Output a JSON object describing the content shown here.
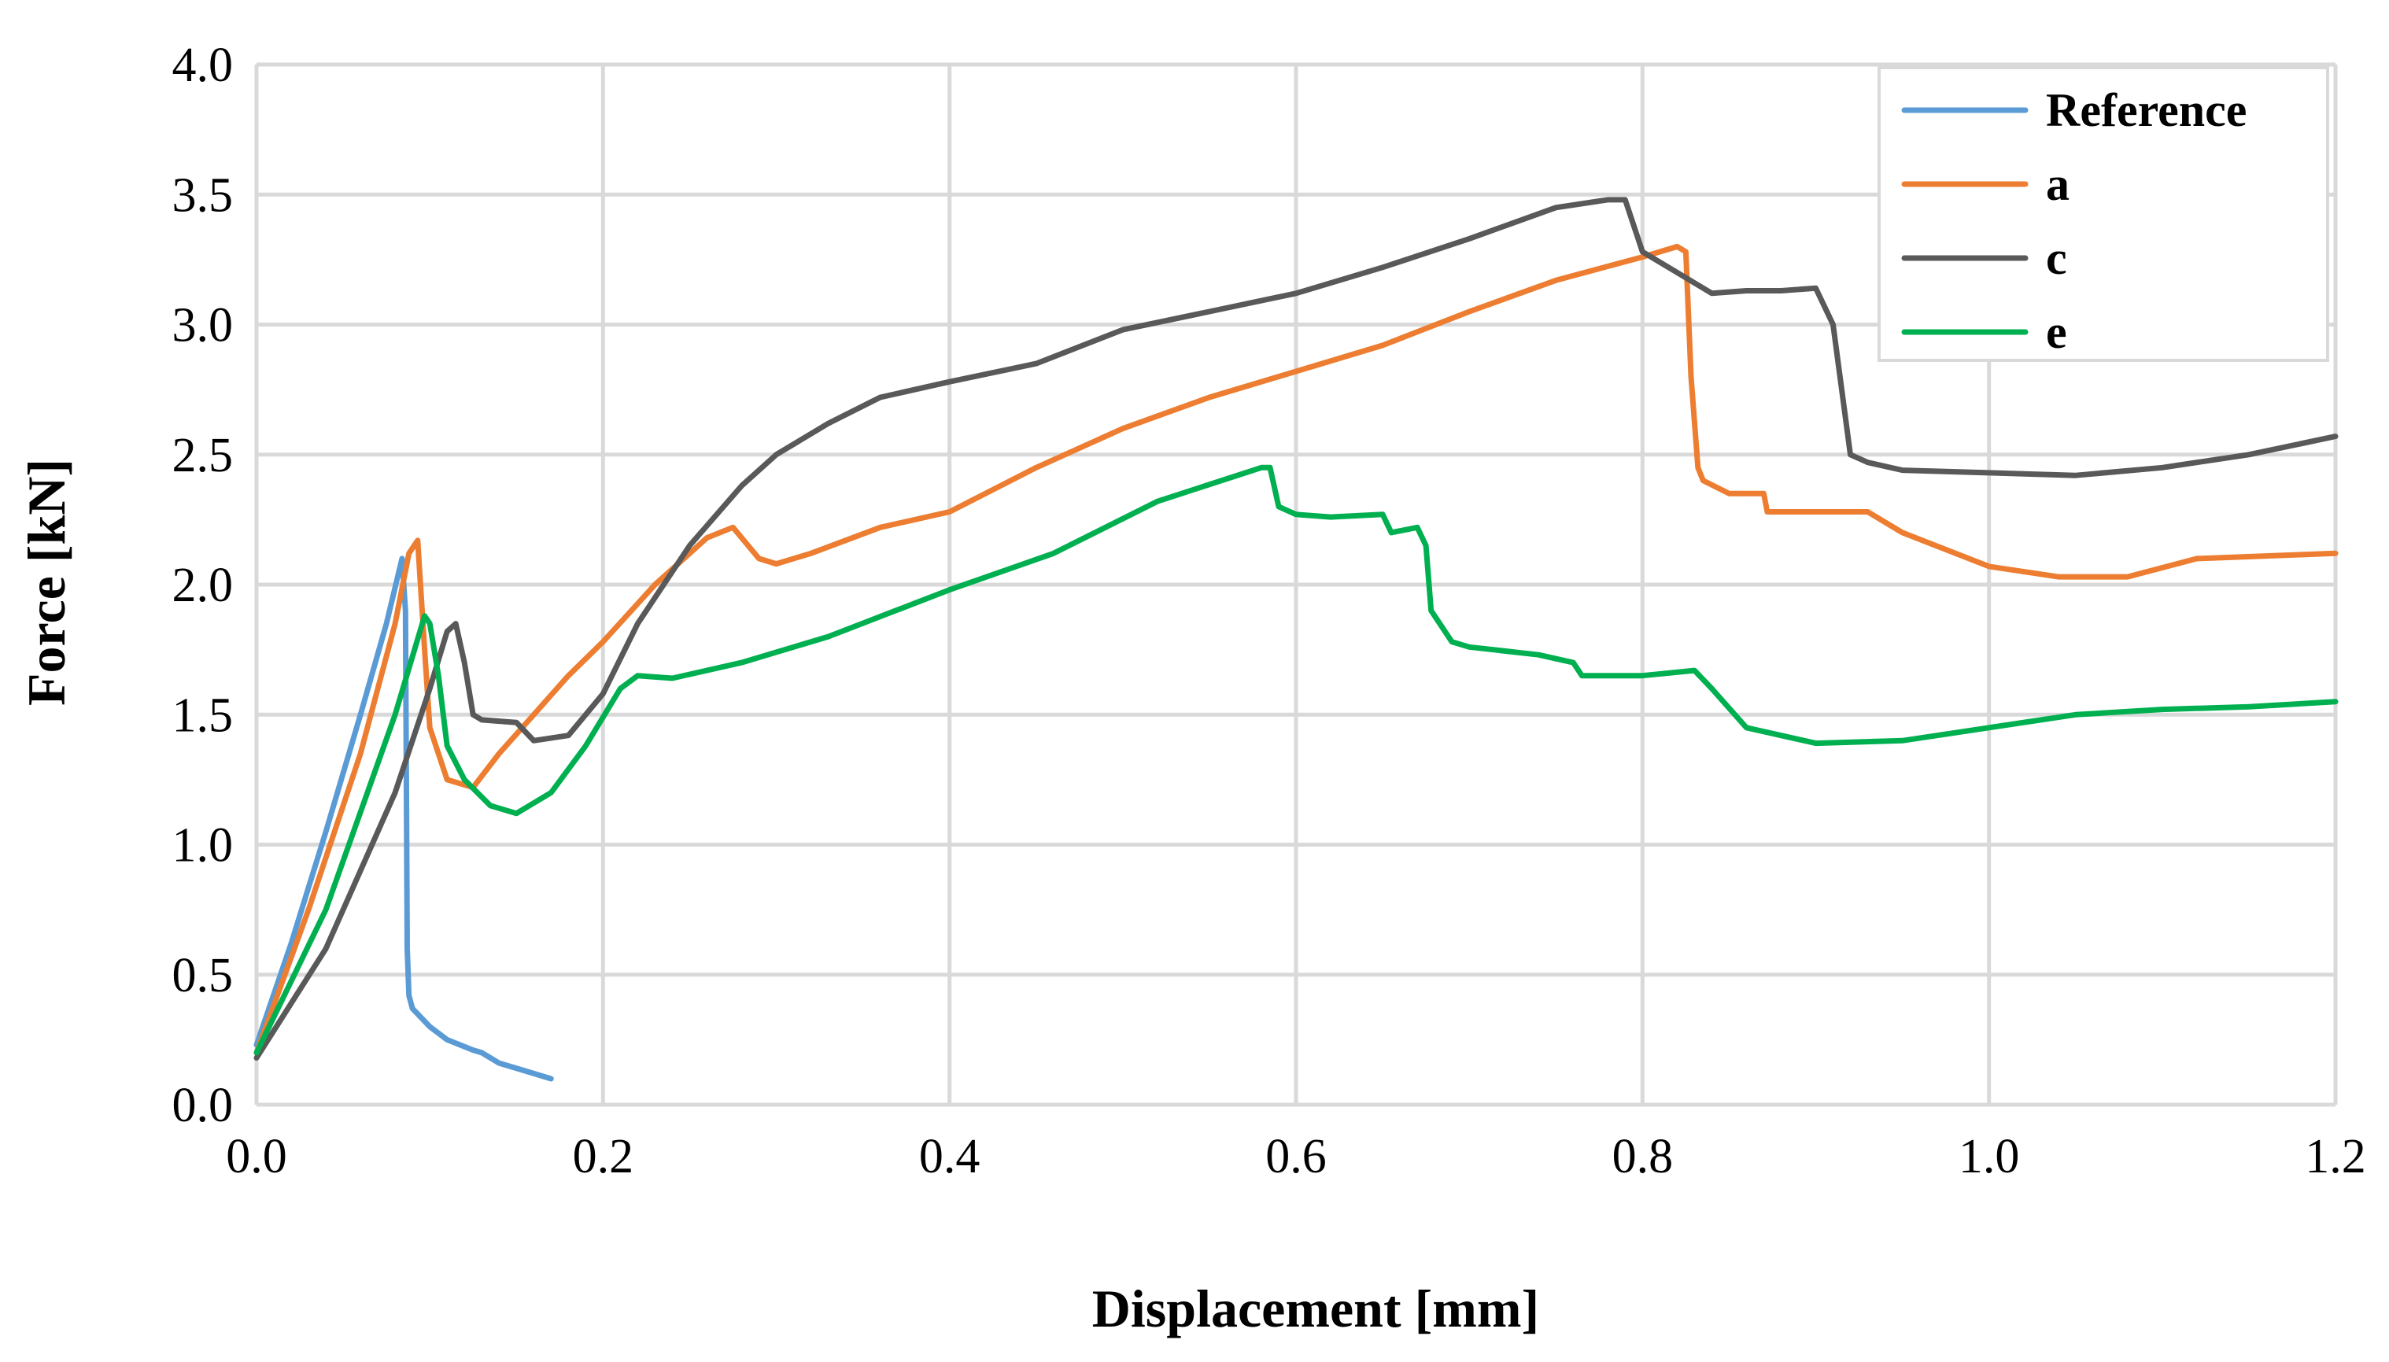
{
  "chart_data": {
    "type": "line",
    "title": "",
    "xlabel": "Displacement [mm]",
    "ylabel": "Force [kN]",
    "xlim": [
      0.0,
      1.2
    ],
    "ylim": [
      0.0,
      4.0
    ],
    "x_ticks": [
      "0.0",
      "0.2",
      "0.4",
      "0.6",
      "0.8",
      "1.0",
      "1.2"
    ],
    "y_ticks": [
      "0.0",
      "0.5",
      "1.0",
      "1.5",
      "2.0",
      "2.5",
      "3.0",
      "3.5",
      "4.0"
    ],
    "grid": true,
    "legend_position": "top-right",
    "series": [
      {
        "name": "Reference",
        "color": "#5b9bd5",
        "x": [
          0.0,
          0.02,
          0.04,
          0.06,
          0.075,
          0.084,
          0.086,
          0.087,
          0.088,
          0.09,
          0.1,
          0.11,
          0.125,
          0.13,
          0.14,
          0.155,
          0.17
        ],
        "y": [
          0.23,
          0.62,
          1.05,
          1.5,
          1.85,
          2.1,
          1.9,
          0.6,
          0.42,
          0.37,
          0.3,
          0.25,
          0.21,
          0.2,
          0.16,
          0.13,
          0.1
        ]
      },
      {
        "name": "a",
        "color": "#ed7d31",
        "x": [
          0.0,
          0.03,
          0.06,
          0.08,
          0.088,
          0.093,
          0.097,
          0.1,
          0.11,
          0.125,
          0.14,
          0.16,
          0.18,
          0.2,
          0.23,
          0.26,
          0.275,
          0.28,
          0.29,
          0.3,
          0.32,
          0.36,
          0.4,
          0.45,
          0.5,
          0.55,
          0.6,
          0.65,
          0.7,
          0.75,
          0.8,
          0.82,
          0.825,
          0.828,
          0.832,
          0.835,
          0.85,
          0.87,
          0.872,
          0.9,
          0.93,
          0.95,
          1.0,
          1.04,
          1.08,
          1.12,
          1.2
        ],
        "y": [
          0.2,
          0.75,
          1.35,
          1.85,
          2.12,
          2.17,
          1.75,
          1.45,
          1.25,
          1.22,
          1.35,
          1.5,
          1.65,
          1.78,
          2.0,
          2.18,
          2.22,
          2.18,
          2.1,
          2.08,
          2.12,
          2.22,
          2.28,
          2.45,
          2.6,
          2.72,
          2.82,
          2.92,
          3.05,
          3.17,
          3.26,
          3.3,
          3.28,
          2.8,
          2.45,
          2.4,
          2.35,
          2.35,
          2.28,
          2.28,
          2.28,
          2.2,
          2.07,
          2.03,
          2.03,
          2.1,
          2.12
        ]
      },
      {
        "name": "c",
        "color": "#595959",
        "x": [
          0.0,
          0.04,
          0.08,
          0.1,
          0.11,
          0.115,
          0.12,
          0.125,
          0.13,
          0.15,
          0.16,
          0.18,
          0.2,
          0.22,
          0.25,
          0.28,
          0.3,
          0.33,
          0.36,
          0.4,
          0.45,
          0.5,
          0.55,
          0.6,
          0.65,
          0.7,
          0.75,
          0.78,
          0.79,
          0.8,
          0.82,
          0.84,
          0.86,
          0.88,
          0.9,
          0.91,
          0.92,
          0.93,
          0.95,
          1.0,
          1.05,
          1.1,
          1.15,
          1.2
        ],
        "y": [
          0.18,
          0.6,
          1.2,
          1.6,
          1.82,
          1.85,
          1.7,
          1.5,
          1.48,
          1.47,
          1.4,
          1.42,
          1.58,
          1.85,
          2.15,
          2.38,
          2.5,
          2.62,
          2.72,
          2.78,
          2.85,
          2.98,
          3.05,
          3.12,
          3.22,
          3.33,
          3.45,
          3.48,
          3.48,
          3.28,
          3.2,
          3.12,
          3.13,
          3.13,
          3.14,
          3.0,
          2.5,
          2.47,
          2.44,
          2.43,
          2.42,
          2.45,
          2.5,
          2.57
        ]
      },
      {
        "name": "e",
        "color": "#00b050",
        "x": [
          0.0,
          0.04,
          0.08,
          0.097,
          0.1,
          0.105,
          0.11,
          0.12,
          0.135,
          0.15,
          0.17,
          0.19,
          0.21,
          0.22,
          0.24,
          0.28,
          0.33,
          0.4,
          0.46,
          0.52,
          0.58,
          0.585,
          0.59,
          0.6,
          0.62,
          0.65,
          0.655,
          0.67,
          0.675,
          0.678,
          0.69,
          0.7,
          0.74,
          0.76,
          0.765,
          0.8,
          0.83,
          0.84,
          0.86,
          0.9,
          0.95,
          1.0,
          1.05,
          1.1,
          1.15,
          1.2
        ],
        "y": [
          0.2,
          0.75,
          1.5,
          1.88,
          1.85,
          1.65,
          1.38,
          1.25,
          1.15,
          1.12,
          1.2,
          1.38,
          1.6,
          1.65,
          1.64,
          1.7,
          1.8,
          1.98,
          2.12,
          2.32,
          2.45,
          2.45,
          2.3,
          2.27,
          2.26,
          2.27,
          2.2,
          2.22,
          2.15,
          1.9,
          1.78,
          1.76,
          1.73,
          1.7,
          1.65,
          1.65,
          1.67,
          1.6,
          1.45,
          1.39,
          1.4,
          1.45,
          1.5,
          1.52,
          1.53,
          1.55
        ]
      }
    ]
  }
}
